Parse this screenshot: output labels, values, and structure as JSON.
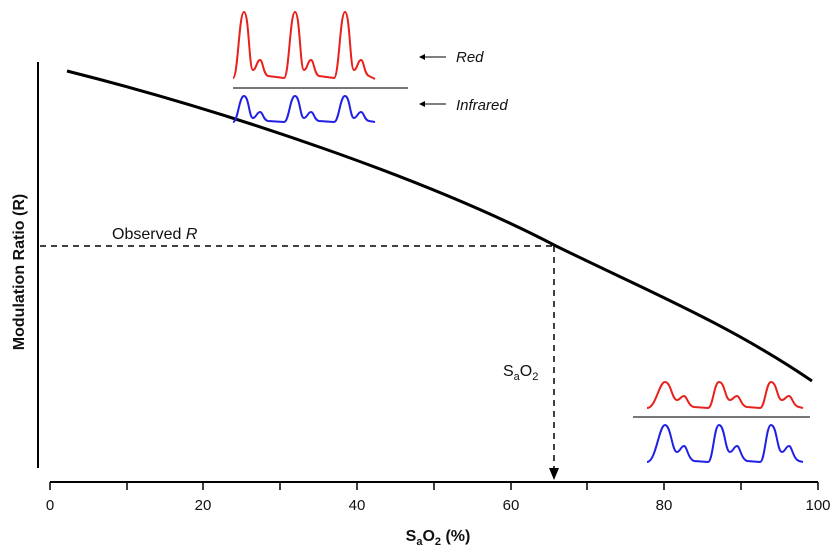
{
  "figure": {
    "x_axis": {
      "title_main": "S",
      "title_sub": "a",
      "title_rest": "O",
      "title_sub2": "2",
      "title_unit": " (%)",
      "ticks": [
        "0",
        "20",
        "40",
        "60",
        "80",
        "100"
      ],
      "range": [
        0,
        100
      ]
    },
    "y_axis": {
      "title": "Modulation Ratio (R)"
    },
    "annotations": {
      "observed_prefix": "Observed ",
      "observed_var": "R",
      "sao2_main": "S",
      "sao2_sub": "a",
      "sao2_rest": "O",
      "sao2_sub2": "2",
      "observed_x_value": 65.5
    },
    "legend": {
      "red_label": "Red",
      "infrared_label": "Infrared"
    },
    "colors": {
      "red_waveform": "#e8211c",
      "infrared_waveform": "#1f1fe6",
      "curve": "#000000",
      "separator": "#777777"
    }
  }
}
